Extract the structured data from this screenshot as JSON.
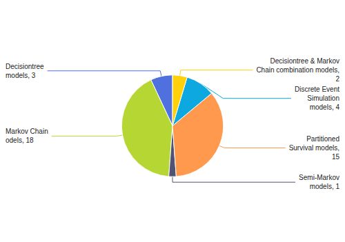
{
  "chart_data": {
    "type": "pie",
    "categories": [
      "Decisiontree\nmodels, 3",
      "Markov Chain\nodels, 18",
      "Semi-Markov\nmodels, 1",
      "Partitioned\nSurvival models,\n15",
      "Discrete Event\nSimulation\nmodels, 4",
      "Decisiontree & Markov\nChain combination models,\n2"
    ],
    "values": [
      3,
      18,
      1,
      15,
      4,
      2
    ]
  }
}
